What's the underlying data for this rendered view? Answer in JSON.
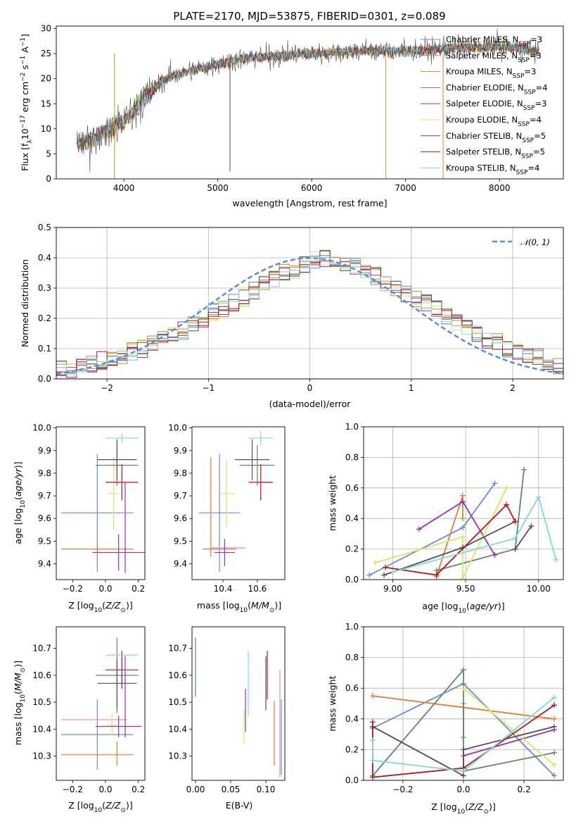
{
  "title": "PLATE=2170, MJD=53875, FIBERID=0301, z=0.089",
  "colors": [
    "#6a8ad8",
    "#e87a30",
    "#b0a020",
    "#5a8a6a",
    "#9a30b0",
    "#d8e860",
    "#505050",
    "#b01818",
    "#80d8e0"
  ],
  "pink": "#e888b8",
  "chart_data": [
    {
      "type": "line",
      "panel": "spectrum",
      "xlabel": "wavelength [Angstrom, rest frame]",
      "ylabel": "Flux [f_λ 10^-17 erg cm^-2 s^-1 A^-1]",
      "xlim": [
        3280,
        8680
      ],
      "ylim": [
        0,
        30.5
      ],
      "xticks": [
        4000,
        5000,
        6000,
        7000,
        8000
      ],
      "yticks": [
        0,
        5,
        10,
        15,
        20,
        25,
        30
      ],
      "grid": false,
      "legend_position": "top-right",
      "data_anchor": {
        "x": [
          3500,
          3600,
          3700,
          3800,
          3900,
          4000,
          4100,
          4200,
          4300,
          4400,
          4500,
          4600,
          4700,
          4800,
          4900,
          5000,
          5200,
          5400,
          5600,
          5800,
          6000,
          6200,
          6400,
          6600,
          6800,
          7000,
          7200,
          7400,
          7600,
          7800,
          8000,
          8200,
          8400
        ],
        "y": [
          7,
          7.5,
          8.5,
          9.5,
          10.5,
          11.5,
          13.5,
          16,
          17.5,
          19.5,
          20.5,
          21,
          21.5,
          22,
          22.5,
          23,
          23.8,
          24.3,
          24.5,
          24.8,
          25,
          25.2,
          25.5,
          25.5,
          25.5,
          25.5,
          25.6,
          26,
          26.2,
          26.3,
          26.4,
          26.1,
          25.5
        ]
      },
      "series": [
        {
          "name": "Chabrier MILES, N_SSP=3",
          "color": "#6a8ad8"
        },
        {
          "name": "Salpeter MILES, N_SSP=3",
          "color": "#e87a30"
        },
        {
          "name": "Kroupa MILES, N_SSP=3",
          "color": "#b0a020"
        },
        {
          "name": "Chabrier ELODIE, N_SSP=4",
          "color": "#5a8a6a"
        },
        {
          "name": "Salpeter ELODIE, N_SSP=3",
          "color": "#9a30b0"
        },
        {
          "name": "Kroupa ELODIE, N_SSP=4",
          "color": "#d8e860"
        },
        {
          "name": "Chabrier STELIB, N_SSP=5",
          "color": "#505050"
        },
        {
          "name": "Salpeter STELIB, N_SSP=5",
          "color": "#b01818"
        },
        {
          "name": "Kroupa STELIB, N_SSP=4",
          "color": "#80d8e0"
        }
      ]
    },
    {
      "type": "histogram",
      "panel": "residuals",
      "xlabel": "(data-model)/error",
      "ylabel": "Normed distribution",
      "xlim": [
        -2.5,
        2.5
      ],
      "ylim": [
        0,
        0.5
      ],
      "xticks": [
        -2,
        -1,
        0,
        1,
        2
      ],
      "yticks": [
        0.0,
        0.1,
        0.2,
        0.3,
        0.4,
        0.5
      ],
      "grid": true,
      "legend_position": "top-right",
      "legend": "𝒩(0, 1)",
      "bin_width": 0.1,
      "bin_start": -2.5,
      "values": [
        0.03,
        0.03,
        0.04,
        0.05,
        0.06,
        0.07,
        0.08,
        0.09,
        0.1,
        0.12,
        0.13,
        0.15,
        0.16,
        0.18,
        0.2,
        0.22,
        0.23,
        0.25,
        0.27,
        0.29,
        0.31,
        0.33,
        0.35,
        0.36,
        0.38,
        0.39,
        0.4,
        0.39,
        0.38,
        0.37,
        0.35,
        0.34,
        0.32,
        0.3,
        0.28,
        0.26,
        0.25,
        0.23,
        0.21,
        0.19,
        0.17,
        0.15,
        0.13,
        0.12,
        0.1,
        0.09,
        0.08,
        0.07,
        0.06,
        0.04
      ]
    },
    {
      "type": "errorbar",
      "panel": "age-vs-Z",
      "xlabel": "Z [log10(Z/Z⊙)]",
      "ylabel": "age [log10(age/yr)]",
      "xlim": [
        -0.3,
        0.24
      ],
      "ylim": [
        9.33,
        10.005
      ],
      "xticks": [
        -0.2,
        0.0,
        0.2
      ],
      "yticks": [
        9.4,
        9.5,
        9.6,
        9.7,
        9.8,
        9.9,
        10.0
      ],
      "points": [
        {
          "x": -0.05,
          "y": 9.625,
          "xerr": 0.22,
          "yerr": 0.26,
          "color": "#6a8ad8"
        },
        {
          "x": -0.05,
          "y": 9.465,
          "xerr": 0.22,
          "yerr": 0.03,
          "color": "#e87a30"
        },
        {
          "x": 0.05,
          "y": 9.71,
          "xerr": 0.03,
          "yerr": 0.16,
          "color": "#d8e860"
        },
        {
          "x": 0.07,
          "y": 9.835,
          "xerr": 0.13,
          "yerr": 0.09,
          "color": "#5a8a6a"
        },
        {
          "x": 0.08,
          "y": 9.45,
          "xerr": 0.16,
          "yerr": 0.08,
          "color": "#9a30b0"
        },
        {
          "x": 0.07,
          "y": 9.86,
          "xerr": 0.12,
          "yerr": 0.09,
          "color": "#505050"
        },
        {
          "x": 0.1,
          "y": 9.76,
          "xerr": 0.1,
          "yerr": 0.08,
          "color": "#b01818"
        },
        {
          "x": 0.1,
          "y": 9.955,
          "xerr": 0.1,
          "yerr": 0.02,
          "color": "#80d8e0"
        },
        {
          "x": 0.12,
          "y": 9.56,
          "xerr": 0.0,
          "yerr": 0.2,
          "color": "#9a30b0"
        }
      ]
    },
    {
      "type": "errorbar",
      "panel": "age-vs-mass",
      "xlabel": "mass [log10(M/M⊙)]",
      "ylabel": "",
      "xlim": [
        10.22,
        10.76
      ],
      "ylim": [
        9.33,
        10.005
      ],
      "xticks": [
        10.4,
        10.6
      ],
      "yticks": [
        9.4,
        9.5,
        9.6,
        9.7,
        9.8,
        9.9,
        10.0
      ],
      "points": [
        {
          "x": 10.38,
          "y": 9.625,
          "xerr": 0.12,
          "yerr": 0.26,
          "color": "#6a8ad8"
        },
        {
          "x": 10.33,
          "y": 9.65,
          "xerr": 0.0,
          "yerr": 0.22,
          "color": "#e87a30"
        },
        {
          "x": 10.38,
          "y": 9.465,
          "xerr": 0.1,
          "yerr": 0.0,
          "color": "#e87a30"
        },
        {
          "x": 10.43,
          "y": 9.47,
          "xerr": 0.1,
          "yerr": 0.0,
          "color": "#e888b8"
        },
        {
          "x": 10.42,
          "y": 9.71,
          "xerr": 0.05,
          "yerr": 0.15,
          "color": "#d8e860"
        },
        {
          "x": 10.41,
          "y": 9.45,
          "xerr": 0.06,
          "yerr": 0.06,
          "color": "#9a30b0"
        },
        {
          "x": 10.6,
          "y": 9.835,
          "xerr": 0.1,
          "yerr": 0.09,
          "color": "#5a8a6a"
        },
        {
          "x": 10.57,
          "y": 9.86,
          "xerr": 0.1,
          "yerr": 0.09,
          "color": "#505050"
        },
        {
          "x": 10.62,
          "y": 9.76,
          "xerr": 0.07,
          "yerr": 0.08,
          "color": "#b01818"
        },
        {
          "x": 10.62,
          "y": 9.955,
          "xerr": 0.07,
          "yerr": 0.03,
          "color": "#80d8e0"
        }
      ]
    },
    {
      "type": "line",
      "panel": "weight-vs-age",
      "xlabel": "age [log10(age/yr)]",
      "ylabel": "mass weight",
      "xlim": [
        8.8,
        10.17
      ],
      "ylim": [
        0,
        1.0
      ],
      "xticks": [
        9.0,
        9.5,
        10.0
      ],
      "yticks": [
        0.0,
        0.2,
        0.4,
        0.6,
        0.8,
        1.0
      ],
      "grid": true,
      "series": [
        {
          "color": "#6a8ad8",
          "x": [
            8.84,
            9.48,
            9.7
          ],
          "y": [
            0.03,
            0.34,
            0.63
          ]
        },
        {
          "color": "#e87a30",
          "x": [
            9.3,
            9.48
          ],
          "y": [
            0.02,
            0.55
          ]
        },
        {
          "color": "#b0a020",
          "x": [
            9.48,
            9.48
          ],
          "y": [
            0.4,
            0.55
          ]
        },
        {
          "color": "#5a8a6a",
          "x": [
            9.3,
            9.84,
            9.9
          ],
          "y": [
            0.06,
            0.2,
            0.72
          ]
        },
        {
          "color": "#9a30b0",
          "x": [
            9.18,
            9.48,
            9.7
          ],
          "y": [
            0.33,
            0.51,
            0.16
          ]
        },
        {
          "color": "#d8e860",
          "x": [
            8.88,
            9.48,
            9.48,
            9.78
          ],
          "y": [
            0.11,
            0.28,
            0.01,
            0.6
          ]
        },
        {
          "color": "#505050",
          "x": [
            8.94,
            9.48,
            9.84
          ],
          "y": [
            0.03,
            0.21,
            0.38
          ]
        },
        {
          "color": "#505050",
          "x": [
            9.84,
            9.95
          ],
          "y": [
            0.2,
            0.35
          ]
        },
        {
          "color": "#b01818",
          "x": [
            8.95,
            9.3,
            9.78,
            9.84
          ],
          "y": [
            0.08,
            0.03,
            0.49,
            0.38
          ]
        },
        {
          "color": "#80d8e0",
          "x": [
            9.0,
            9.84,
            10.0,
            10.12
          ],
          "y": [
            0.05,
            0.27,
            0.54,
            0.13
          ]
        }
      ]
    },
    {
      "type": "errorbar",
      "panel": "mass-vs-Z",
      "xlabel": "Z [log10(Z/Z⊙)]",
      "ylabel": "mass [log10(M/M⊙)]",
      "xlim": [
        -0.3,
        0.24
      ],
      "ylim": [
        10.21,
        10.78
      ],
      "xticks": [
        -0.2,
        0.0,
        0.2
      ],
      "yticks": [
        10.3,
        10.4,
        10.5,
        10.6,
        10.7
      ],
      "points": [
        {
          "x": -0.05,
          "y": 10.38,
          "xerr": 0.22,
          "yerr": 0.13,
          "color": "#6a8ad8"
        },
        {
          "x": -0.05,
          "y": 10.305,
          "xerr": 0.22,
          "yerr": 0.0,
          "color": "#e87a30"
        },
        {
          "x": -0.07,
          "y": 10.435,
          "xerr": 0.2,
          "yerr": 0.0,
          "color": "#e888b8"
        },
        {
          "x": 0.07,
          "y": 10.31,
          "xerr": 0.0,
          "yerr": 0.045,
          "color": "#e87a30"
        },
        {
          "x": 0.04,
          "y": 10.415,
          "xerr": 0.03,
          "yerr": 0.04,
          "color": "#d8e860"
        },
        {
          "x": 0.08,
          "y": 10.41,
          "xerr": 0.14,
          "yerr": 0.04,
          "color": "#9a30b0"
        },
        {
          "x": 0.07,
          "y": 10.6,
          "xerr": 0.13,
          "yerr": 0.14,
          "color": "#5a8a6a"
        },
        {
          "x": 0.07,
          "y": 10.57,
          "xerr": 0.12,
          "yerr": 0.09,
          "color": "#505050"
        },
        {
          "x": 0.1,
          "y": 10.62,
          "xerr": 0.1,
          "yerr": 0.07,
          "color": "#b01818"
        },
        {
          "x": 0.1,
          "y": 10.675,
          "xerr": 0.1,
          "yerr": 0.0,
          "color": "#80d8e0"
        },
        {
          "x": 0.12,
          "y": 10.52,
          "xerr": 0.0,
          "yerr": 0.15,
          "color": "#9a30b0"
        }
      ]
    },
    {
      "type": "errorbar",
      "panel": "mass-vs-EBV",
      "xlabel": "E(B-V)",
      "ylabel": "",
      "xlim": [
        -0.005,
        0.127
      ],
      "ylim": [
        10.21,
        10.78
      ],
      "xticks": [
        0.0,
        0.05,
        0.1
      ],
      "yticks": [
        10.3,
        10.4,
        10.5,
        10.6,
        10.7
      ],
      "points": [
        {
          "x": 0.0,
          "y": 10.63,
          "xerr": 0.0,
          "yerr": 0.11,
          "color": "#5a8a6a"
        },
        {
          "x": 0.069,
          "y": 10.41,
          "xerr": 0.0,
          "yerr": 0.065,
          "color": "#d8e860"
        },
        {
          "x": 0.071,
          "y": 10.47,
          "xerr": 0.0,
          "yerr": 0.08,
          "color": "#9a30b0"
        },
        {
          "x": 0.075,
          "y": 10.57,
          "xerr": 0.0,
          "yerr": 0.12,
          "color": "#80d8e0"
        },
        {
          "x": 0.1,
          "y": 10.57,
          "xerr": 0.0,
          "yerr": 0.1,
          "color": "#505050"
        },
        {
          "x": 0.102,
          "y": 10.6,
          "xerr": 0.0,
          "yerr": 0.09,
          "color": "#b01818"
        },
        {
          "x": 0.112,
          "y": 10.385,
          "xerr": 0.0,
          "yerr": 0.12,
          "color": "#e87a30"
        },
        {
          "x": 0.12,
          "y": 10.42,
          "xerr": 0.0,
          "yerr": 0.2,
          "color": "#e888b8"
        },
        {
          "x": 0.122,
          "y": 10.37,
          "xerr": 0.0,
          "yerr": 0.14,
          "color": "#6a8ad8"
        }
      ]
    },
    {
      "type": "line",
      "panel": "weight-vs-Z",
      "xlabel": "Z [log10(Z/Z⊙)]",
      "ylabel": "mass weight",
      "xlim": [
        -0.33,
        0.33
      ],
      "ylim": [
        0,
        1.0
      ],
      "xticks": [
        -0.2,
        0.0,
        0.2
      ],
      "yticks": [
        0.0,
        0.2,
        0.4,
        0.6,
        0.8,
        1.0
      ],
      "grid": true,
      "series": [
        {
          "color": "#6a8ad8",
          "x": [
            -0.3,
            0.0,
            0.3
          ],
          "y": [
            0.34,
            0.63,
            0.03
          ]
        },
        {
          "color": "#e87a30",
          "x": [
            -0.3,
            0.3
          ],
          "y": [
            0.55,
            0.4
          ]
        },
        {
          "color": "#b0a020",
          "x": [
            0.0,
            0.0
          ],
          "y": [
            0.28,
            0.5
          ]
        },
        {
          "color": "#5a8a6a",
          "x": [
            -0.3,
            0.0,
            0.0,
            0.3
          ],
          "y": [
            0.03,
            0.72,
            0.06,
            0.18
          ]
        },
        {
          "color": "#9a30b0",
          "x": [
            0.0,
            0.3
          ],
          "y": [
            0.16,
            0.33
          ]
        },
        {
          "color": "#d8e860",
          "x": [
            0.0,
            0.3
          ],
          "y": [
            0.6,
            0.1
          ]
        },
        {
          "color": "#505050",
          "x": [
            -0.3,
            0.0,
            0.0,
            0.3
          ],
          "y": [
            0.35,
            0.03,
            0.2,
            0.35
          ]
        },
        {
          "color": "#b01818",
          "x": [
            -0.3,
            -0.3,
            0.0,
            0.3
          ],
          "y": [
            0.38,
            0.02,
            0.08,
            0.49
          ]
        },
        {
          "color": "#80d8e0",
          "x": [
            -0.3,
            -0.3,
            0.0,
            0.3
          ],
          "y": [
            0.26,
            0.13,
            0.06,
            0.54
          ]
        }
      ]
    }
  ]
}
